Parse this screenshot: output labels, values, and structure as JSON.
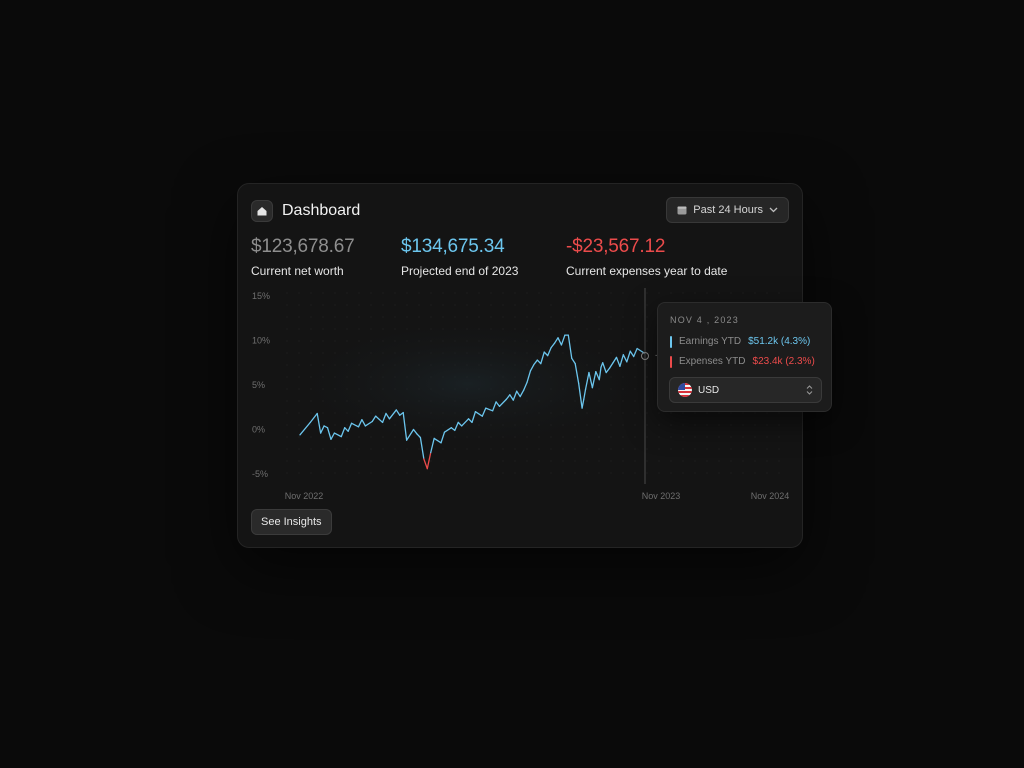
{
  "header": {
    "title": "Dashboard",
    "icon": "home-icon"
  },
  "range": {
    "label": "Past 24 Hours",
    "icon": "calendar-icon"
  },
  "stats": [
    {
      "value": "$123,678.67",
      "label": "Current net worth",
      "color": "#8e8e8e"
    },
    {
      "value": "$134,675.34",
      "label": "Projected end of 2023",
      "color": "#6cc6ee"
    },
    {
      "value": "-$23,567.12",
      "label": "Current expenses year to date",
      "color": "#ec4b4b"
    }
  ],
  "chart_data": {
    "type": "line",
    "y_ticks": [
      "15%",
      "10%",
      "5%",
      "0%",
      "-5%"
    ],
    "x_ticks": [
      "Nov 2022",
      "Nov 2023",
      "Nov 2024"
    ],
    "ylim": [
      -5,
      15
    ],
    "colors": {
      "positive": "#6cc6ee",
      "negative": "#ec4b4b"
    },
    "series": [
      {
        "x": [
          0,
          0.03,
          0.05,
          0.06,
          0.07,
          0.08,
          0.09,
          0.1,
          0.12,
          0.13,
          0.14,
          0.15,
          0.17,
          0.18,
          0.19,
          0.21,
          0.22,
          0.24,
          0.25,
          0.26,
          0.28,
          0.29,
          0.3,
          0.31,
          0.33,
          0.34,
          0.35,
          0.36,
          0.37,
          0.38,
          0.39,
          0.41,
          0.42,
          0.44,
          0.45,
          0.46,
          0.47,
          0.49,
          0.5,
          0.51,
          0.53,
          0.54,
          0.56,
          0.57,
          0.58,
          0.6,
          0.61,
          0.62,
          0.63,
          0.64,
          0.65,
          0.66,
          0.67,
          0.68,
          0.69,
          0.7,
          0.71,
          0.72,
          0.73,
          0.74,
          0.75,
          0.76,
          0.77,
          0.78,
          0.79,
          0.8,
          0.81,
          0.82,
          0.825,
          0.83,
          0.84,
          0.85,
          0.86,
          0.87,
          0.875,
          0.88,
          0.89,
          0.9,
          0.91,
          0.92,
          0.93,
          0.94,
          0.95,
          0.96,
          0.97,
          0.98,
          1.0
        ],
        "y": [
          -0.6,
          0.8,
          1.8,
          -0.4,
          0.4,
          0.2,
          -1.1,
          -0.4,
          -0.8,
          0.2,
          -0.2,
          0.7,
          0.3,
          1.1,
          0.4,
          0.9,
          1.5,
          0.8,
          1.8,
          1.2,
          2.2,
          1.6,
          1.9,
          -1.2,
          0,
          -0.5,
          -0.9,
          -3.3,
          -4.4,
          -2.6,
          -1,
          -1.5,
          -0.3,
          0.2,
          -0.1,
          0.8,
          0.4,
          1.2,
          0.8,
          2,
          1.5,
          2.4,
          2.1,
          3.1,
          2.6,
          3.4,
          3.9,
          3.3,
          4.3,
          3.7,
          4.4,
          5.3,
          6.6,
          7.3,
          7.8,
          7.4,
          8.7,
          8.3,
          9.2,
          9.7,
          10.3,
          9.5,
          10.6,
          10.6,
          8,
          7.4,
          5.2,
          2.4,
          3.4,
          4.5,
          6.4,
          4.7,
          6.5,
          5.6,
          7,
          7.5,
          6.4,
          6.9,
          7.5,
          8.1,
          7.1,
          8.4,
          7.6,
          8.8,
          8.2,
          9.1,
          8.6
        ]
      }
    ]
  },
  "crosshair": {
    "label": "-"
  },
  "tooltip": {
    "date": "NOV 4 , 2023",
    "earnings": {
      "label": "Earnings YTD",
      "value": "$51.2k (4.3%)",
      "color": "#6cc6ee"
    },
    "expenses": {
      "label": "Expenses YTD",
      "value": "$23.4k (2.3%)",
      "color": "#ec4b4b"
    },
    "currency": {
      "value": "USD",
      "icon": "us-flag-icon"
    }
  },
  "insights": {
    "label": "See Insights"
  }
}
